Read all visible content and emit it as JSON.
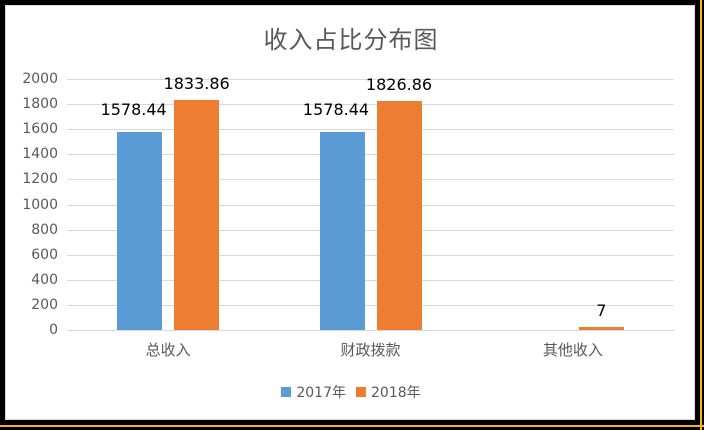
{
  "chart_data": {
    "type": "bar",
    "title": "收入占比分布图",
    "categories": [
      "总收入",
      "财政拨款",
      "其他收入"
    ],
    "series": [
      {
        "name": "2017年",
        "color": "#5b9bd5",
        "values": [
          1578.44,
          1578.44,
          null
        ],
        "labels": [
          "1578.44",
          "1578.44",
          ""
        ]
      },
      {
        "name": "2018年",
        "color": "#ed7d31",
        "values": [
          1833.86,
          1826.86,
          7
        ],
        "labels": [
          "1833.86",
          "1826.86",
          "7"
        ]
      }
    ],
    "xlabel": "",
    "ylabel": "",
    "ylim": [
      0,
      2000
    ],
    "yticks": [
      "2000",
      "1800",
      "1600",
      "1400",
      "1200",
      "1000",
      "800",
      "600",
      "400",
      "200",
      "0"
    ],
    "grid": true,
    "legend_position": "bottom"
  },
  "colors": {
    "series_2017": "#5b9bd5",
    "series_2018": "#ed7d31",
    "frame_border": "#000000",
    "frame_accent": "#f5b800"
  }
}
